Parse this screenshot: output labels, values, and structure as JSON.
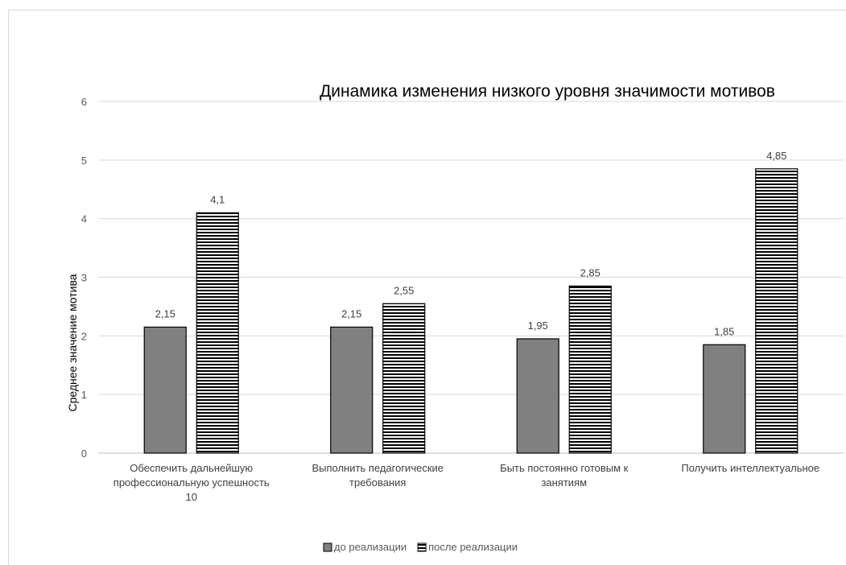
{
  "chart_data": {
    "type": "bar",
    "title": "Динамика изменения низкого уровня значимости мотивов",
    "xlabel": "",
    "ylabel": "Среднее значение мотива",
    "ylim": [
      0,
      6
    ],
    "yticks": [
      "0",
      "1",
      "2",
      "3",
      "4",
      "5",
      "6"
    ],
    "grid": true,
    "legend_position": "bottom",
    "categories": [
      [
        "Обеспечить дальнейшую",
        "профессиональную успешность",
        "10"
      ],
      [
        "Выполнить педагогические",
        "требования"
      ],
      [
        "Быть постоянно готовым к",
        "занятиям"
      ],
      [
        "Получить интеллектуальное"
      ]
    ],
    "series": [
      {
        "name": "до реализации",
        "values": [
          2.15,
          2.15,
          1.95,
          1.85
        ],
        "labels": [
          "2,15",
          "2,15",
          "1,95",
          "1,85"
        ],
        "color": "#808080",
        "pattern": "solid"
      },
      {
        "name": "после реализации",
        "values": [
          4.1,
          2.55,
          2.85,
          4.85
        ],
        "labels": [
          "4,1",
          "2,55",
          "2,85",
          "4,85"
        ],
        "color": "#000000",
        "pattern": "horizontal-stripes"
      }
    ]
  }
}
